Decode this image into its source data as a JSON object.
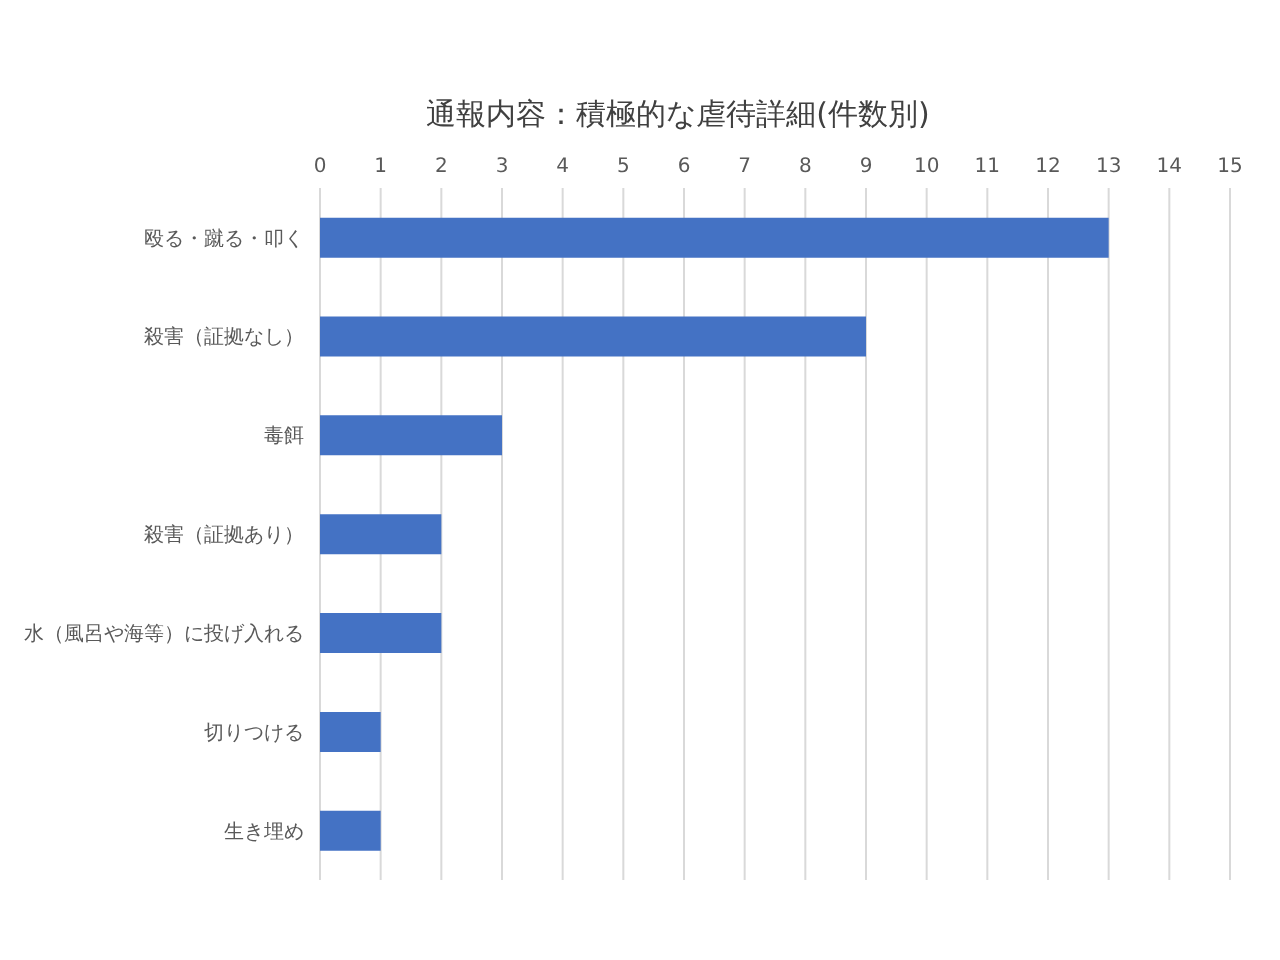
{
  "chart_data": {
    "type": "bar",
    "orientation": "horizontal",
    "title": "通報内容：積極的な虐待詳細(件数別)",
    "categories": [
      "殴る・蹴る・叩く",
      "殺害（証拠なし）",
      "毒餌",
      "殺害（証拠あり）",
      "水（風呂や海等）に投げ入れる",
      "切りつける",
      "生き埋め"
    ],
    "values": [
      13,
      9,
      3,
      2,
      2,
      1,
      1
    ],
    "color": "#4472c4",
    "xlim": [
      0,
      15
    ],
    "xticks": [
      0,
      1,
      2,
      3,
      4,
      5,
      6,
      7,
      8,
      9,
      10,
      11,
      12,
      13,
      14,
      15
    ],
    "grid": "x"
  }
}
